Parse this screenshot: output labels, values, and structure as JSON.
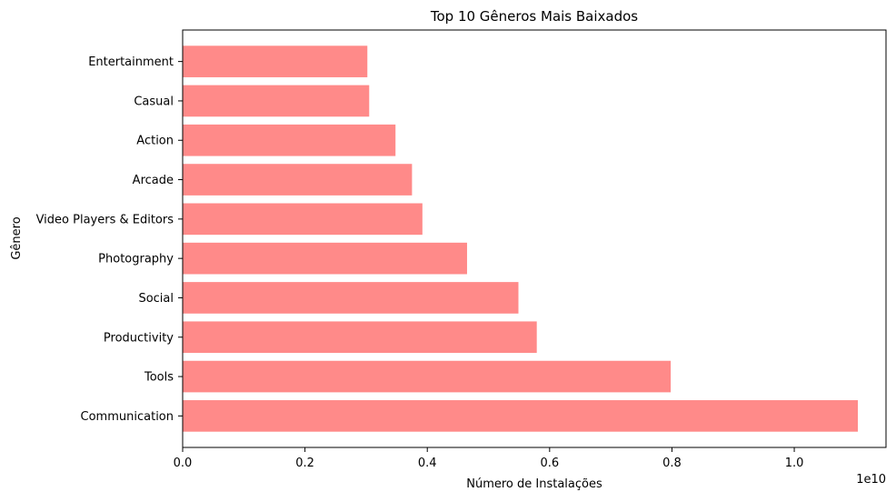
{
  "chart_data": {
    "type": "bar",
    "orientation": "horizontal",
    "title": "Top 10 Gêneros Mais Baixados",
    "xlabel": "Número de Instalações",
    "ylabel": "Gênero",
    "x_scale_label": "1e10",
    "xlim": [
      0,
      1.15
    ],
    "x_ticks": [
      0.0,
      0.2,
      0.4,
      0.6,
      0.8,
      1.0
    ],
    "x_tick_labels": [
      "0.0",
      "0.2",
      "0.4",
      "0.6",
      "0.8",
      "1.0"
    ],
    "categories": [
      "Communication",
      "Tools",
      "Productivity",
      "Social",
      "Photography",
      "Video Players & Editors",
      "Arcade",
      "Action",
      "Casual",
      "Entertainment"
    ],
    "values": [
      1.104,
      0.798,
      0.579,
      0.549,
      0.465,
      0.392,
      0.375,
      0.348,
      0.305,
      0.302
    ],
    "bar_color": "#ff8a89",
    "grid": false,
    "legend": "none"
  }
}
